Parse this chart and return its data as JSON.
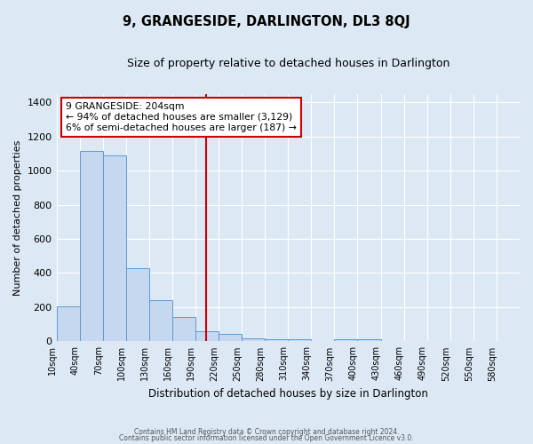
{
  "title": "9, GRANGESIDE, DARLINGTON, DL3 8QJ",
  "subtitle": "Size of property relative to detached houses in Darlington",
  "xlabel": "Distribution of detached houses by size in Darlington",
  "ylabel": "Number of detached properties",
  "bar_color": "#c5d8f0",
  "bar_edge_color": "#5b9bd5",
  "background_color": "#dce9f5",
  "grid_color": "#ffffff",
  "vline_x": 204,
  "vline_color": "#cc0000",
  "bin_edges": [
    10,
    40,
    70,
    100,
    130,
    160,
    190,
    220,
    250,
    280,
    310,
    340,
    370,
    400,
    430,
    460,
    490,
    520,
    550,
    580,
    610
  ],
  "bar_heights": [
    203,
    1115,
    1090,
    430,
    240,
    143,
    60,
    45,
    20,
    12,
    12,
    0,
    12,
    12,
    0,
    0,
    0,
    0,
    0,
    0
  ],
  "annotation_title": "9 GRANGESIDE: 204sqm",
  "annotation_line1": "← 94% of detached houses are smaller (3,129)",
  "annotation_line2": "6% of semi-detached houses are larger (187) →",
  "annotation_box_color": "#ffffff",
  "annotation_box_edge": "#cc0000",
  "ylim": [
    0,
    1450
  ],
  "yticks": [
    0,
    200,
    400,
    600,
    800,
    1000,
    1200,
    1400
  ],
  "footer1": "Contains HM Land Registry data © Crown copyright and database right 2024.",
  "footer2": "Contains public sector information licensed under the Open Government Licence v3.0."
}
